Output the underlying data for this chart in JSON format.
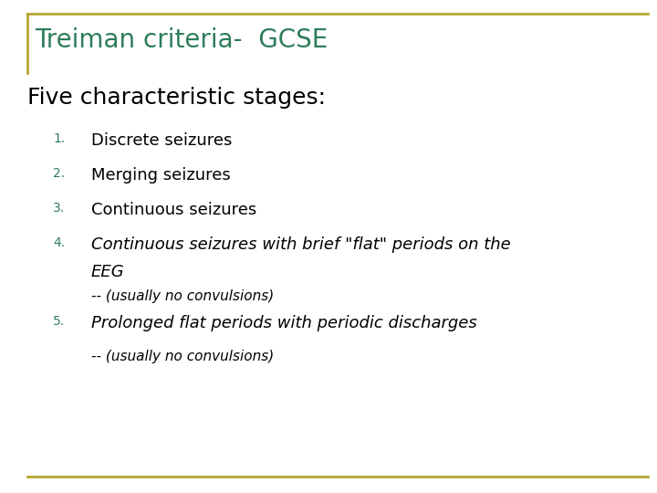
{
  "title": "Treiman criteria-  GCSE",
  "title_color": "#2E7D5B",
  "subtitle": "Five characteristic stages:",
  "subtitle_color": "#000000",
  "bg_color": "#FFFFFF",
  "border_color": "#B8A830",
  "items": [
    {
      "num": "1.",
      "text": "Discrete seizures",
      "italic": false,
      "small": false,
      "indent": true
    },
    {
      "num": "2.",
      "text": "Merging seizures",
      "italic": false,
      "small": false,
      "indent": true
    },
    {
      "num": "3.",
      "text": "Continuous seizures",
      "italic": false,
      "small": false,
      "indent": true
    },
    {
      "num": "4.",
      "text": "Continuous seizures with brief \"flat\" periods on the\nEEG",
      "italic": true,
      "small": false,
      "indent": true
    },
    {
      "num": "",
      "text": "-- (usually no convulsions)",
      "italic": true,
      "small": true,
      "indent": true
    },
    {
      "num": "5.",
      "text": "Prolonged flat periods with periodic discharges",
      "italic": true,
      "small": false,
      "indent": true
    },
    {
      "num": "",
      "text": "-- (usually no convulsions)",
      "italic": true,
      "small": true,
      "indent": true
    }
  ],
  "num_color": "#2E7D5B",
  "item_color": "#000000",
  "title_fontsize": 20,
  "subtitle_fontsize": 18,
  "item_fontsize": 13,
  "num_fontsize": 10,
  "small_fontsize": 11
}
